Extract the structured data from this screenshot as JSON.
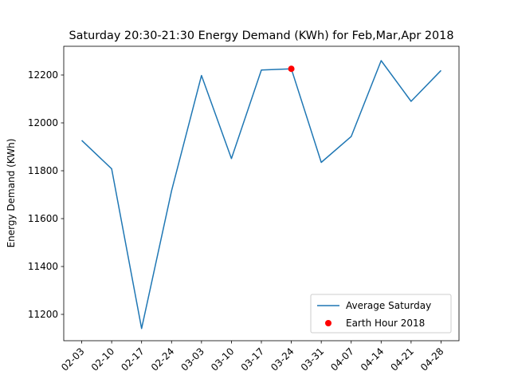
{
  "chart_data": {
    "type": "line",
    "title": "Saturday 20:30-21:30 Energy Demand (KWh) for Feb,Mar,Apr 2018",
    "xlabel": "",
    "ylabel": "Energy Demand (KWh)",
    "categories": [
      "02-03",
      "02-10",
      "02-17",
      "02-24",
      "03-03",
      "03-10",
      "03-17",
      "03-24",
      "03-31",
      "04-07",
      "04-14",
      "04-21",
      "04-28"
    ],
    "ylim": [
      11090,
      12320
    ],
    "yticks": [
      11200,
      11400,
      11600,
      11800,
      12000,
      12200
    ],
    "grid": false,
    "legend_position": "lower-right",
    "series": [
      {
        "name": "Average Saturday",
        "kind": "line",
        "color": "#1f77b4",
        "values": [
          11927,
          11808,
          11141,
          11716,
          12198,
          11851,
          12221,
          12226,
          11835,
          11943,
          12260,
          12090,
          12219
        ]
      },
      {
        "name": "Earth Hour 2018",
        "kind": "marker",
        "color": "#ff0000",
        "points": [
          {
            "x": "03-24",
            "y": 12226
          }
        ]
      }
    ]
  }
}
